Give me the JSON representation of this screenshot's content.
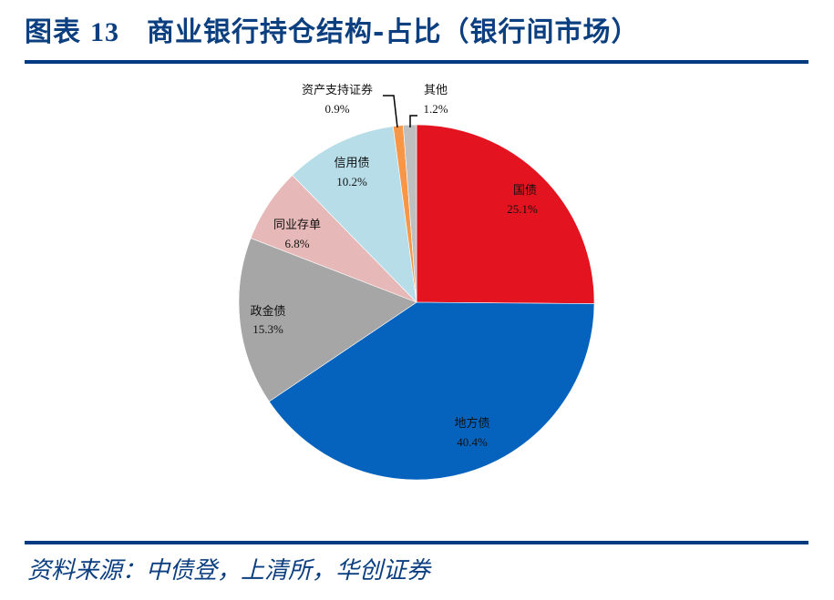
{
  "header": {
    "figure_label": "图表",
    "figure_number": "13",
    "title": "商业银行持仓结构-占比（银行间市场）"
  },
  "footer": {
    "source": "资料来源：中债登，上清所，华创证券"
  },
  "colors": {
    "title_blue": "#0b3f80",
    "rule_blue": "#003a80"
  },
  "chart_data": {
    "type": "pie",
    "title": "商业银行持仓结构-占比（银行间市场）",
    "start_angle": "12 o'clock",
    "direction": "clockwise",
    "categories": [
      "国债",
      "地方债",
      "政金债",
      "同业存单",
      "信用债",
      "资产支持证券",
      "其他"
    ],
    "values": [
      25.1,
      40.4,
      15.3,
      6.8,
      10.2,
      0.9,
      1.2
    ],
    "unit": "%",
    "colors": [
      "#e3141f",
      "#0563be",
      "#a6a6a6",
      "#e6b8b7",
      "#b7dde8",
      "#f79646",
      "#bfbfbf"
    ],
    "labels": [
      {
        "name": "国债",
        "pct": "25.1%"
      },
      {
        "name": "地方债",
        "pct": "40.4%"
      },
      {
        "name": "政金债",
        "pct": "15.3%"
      },
      {
        "name": "同业存单",
        "pct": "6.8%"
      },
      {
        "name": "信用债",
        "pct": "10.2%"
      },
      {
        "name": "资产支持证券",
        "pct": "0.9%"
      },
      {
        "name": "其他",
        "pct": "1.2%"
      }
    ],
    "legend": "none (data labels on slices)"
  }
}
